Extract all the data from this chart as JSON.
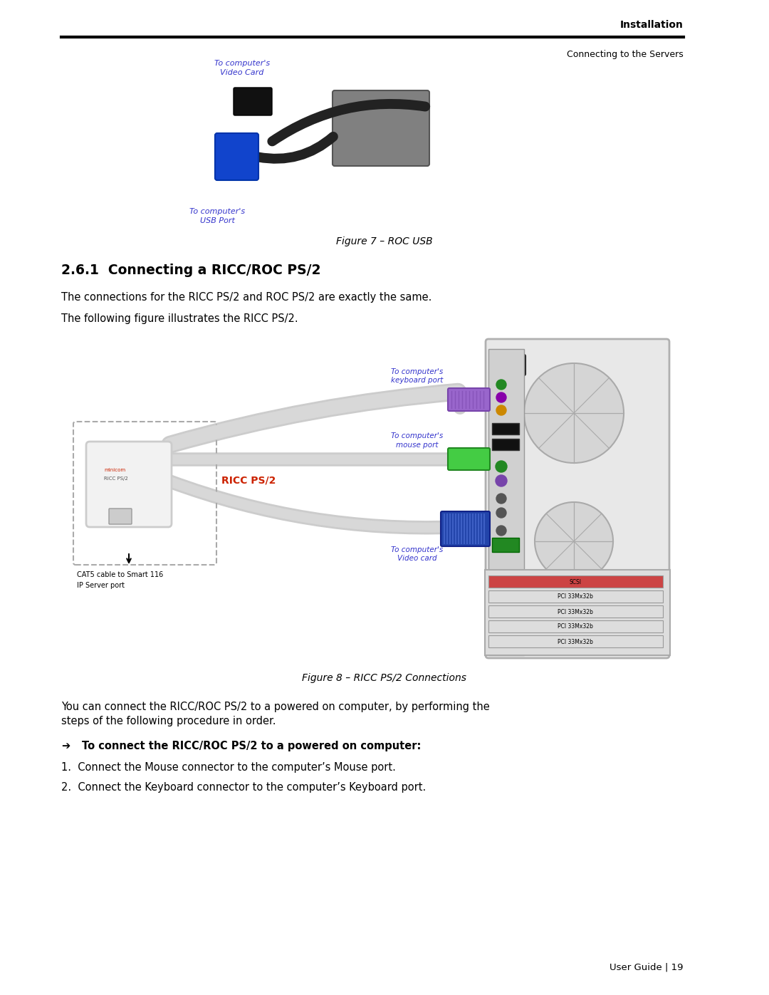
{
  "bg_color": "#ffffff",
  "page_width": 10.8,
  "page_height": 13.97,
  "dpi": 100,
  "header_bold_text": "Installation",
  "header_sub_text": "Connecting to the Servers",
  "figure7_caption": "Figure 7 – ROC USB",
  "section_number": "2.6.1",
  "section_title": "Connecting a RICC/ROC PS/2",
  "para1": "The connections for the RICC PS/2 and ROC PS/2 are exactly the same.",
  "para2": "The following figure illustrates the RICC PS/2.",
  "figure8_caption": "Figure 8 – RICC PS/2 Connections",
  "para3_line1": "You can connect the RICC/ROC PS/2 to a powered on computer, by performing the",
  "para3_line2": "steps of the following procedure in order.",
  "bold_instruction": "To connect the RICC/ROC PS/2 to a powered on computer:",
  "step1": "Connect the Mouse connector to the computer’s Mouse port.",
  "step2": "Connect the Keyboard connector to the computer’s Keyboard port.",
  "footer_text": "User Guide | 19",
  "label_color": "#3333cc",
  "body_font_size": 10.5,
  "section_font_size": 13.5,
  "caption_font_size": 10,
  "header_font_size": 10,
  "footer_font_size": 9.5
}
